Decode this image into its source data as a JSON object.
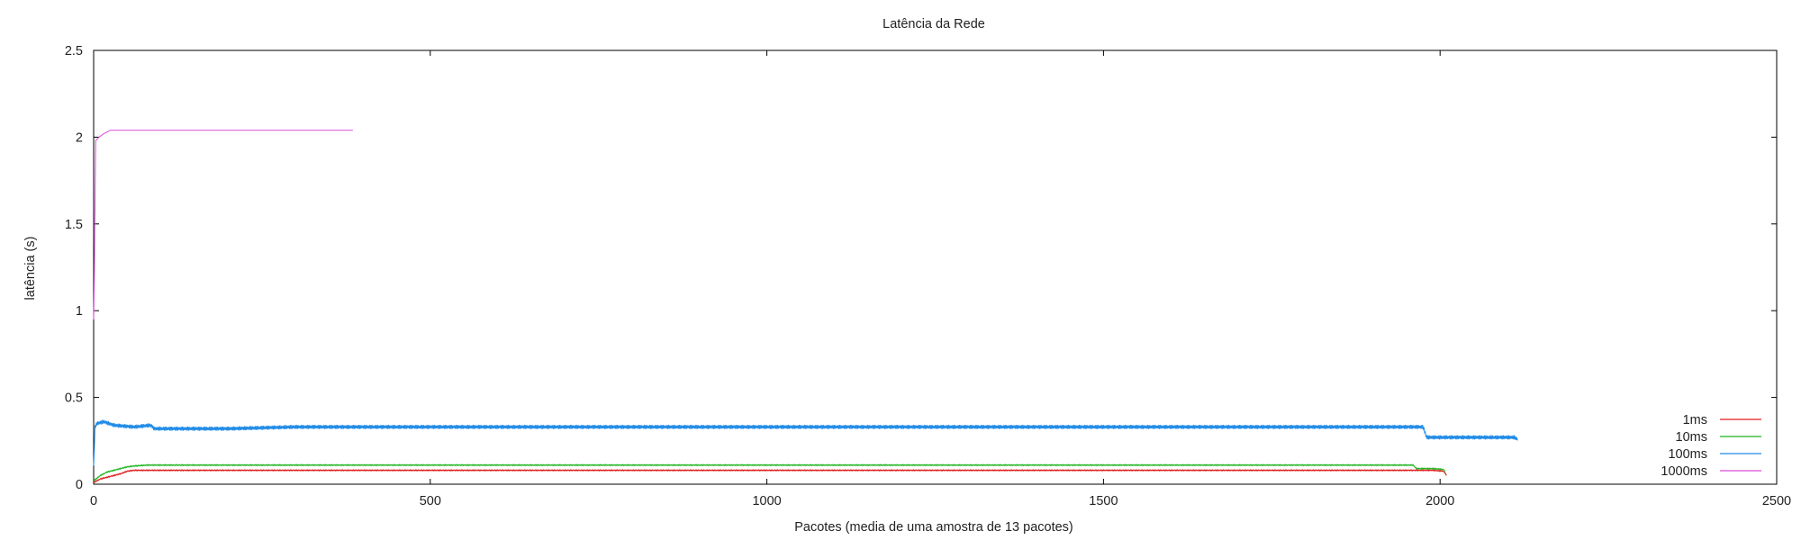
{
  "chart_data": {
    "type": "line",
    "title": "Latência da Rede",
    "xlabel": "Pacotes (media de uma amostra de 13 pacotes)",
    "ylabel": "latência (s)",
    "xlim": [
      0,
      2500
    ],
    "ylim": [
      0,
      2.5
    ],
    "xticks": [
      0,
      500,
      1000,
      1500,
      2000,
      2500
    ],
    "yticks": [
      0,
      0.5,
      1,
      1.5,
      2,
      2.5
    ],
    "xtick_labels": [
      "0",
      "500",
      "1000",
      "1500",
      "2000",
      "2500"
    ],
    "ytick_labels": [
      "0",
      "0.5",
      "1",
      "1.5",
      "2",
      "2.5"
    ],
    "grid": false,
    "legend_position": "bottom-right",
    "series": [
      {
        "name": "1ms",
        "color": "#e01b1b",
        "x": [
          0,
          10,
          20,
          30,
          40,
          50,
          60,
          100,
          500,
          1000,
          1500,
          1900,
          1960,
          1990,
          2005,
          2010
        ],
        "y": [
          0.01,
          0.03,
          0.04,
          0.05,
          0.06,
          0.075,
          0.08,
          0.08,
          0.08,
          0.08,
          0.08,
          0.08,
          0.08,
          0.08,
          0.075,
          0.05
        ],
        "noise": 0.003
      },
      {
        "name": "10ms",
        "color": "#1fb51f",
        "x": [
          0,
          10,
          20,
          30,
          40,
          50,
          60,
          80,
          100,
          500,
          1000,
          1500,
          1960,
          1965,
          1990,
          2005,
          2008
        ],
        "y": [
          0.02,
          0.05,
          0.07,
          0.08,
          0.09,
          0.1,
          0.105,
          0.11,
          0.11,
          0.11,
          0.11,
          0.11,
          0.11,
          0.09,
          0.09,
          0.085,
          0.07
        ],
        "noise": 0.003
      },
      {
        "name": "100ms",
        "color": "#1e8ae6",
        "x": [
          0,
          2,
          5,
          15,
          30,
          60,
          85,
          90,
          200,
          300,
          500,
          1000,
          1500,
          1975,
          1980,
          2000,
          2100,
          2110,
          2115
        ],
        "y": [
          0.1,
          0.33,
          0.35,
          0.36,
          0.34,
          0.33,
          0.34,
          0.32,
          0.32,
          0.33,
          0.33,
          0.33,
          0.33,
          0.33,
          0.27,
          0.27,
          0.27,
          0.27,
          0.26
        ],
        "noise": 0.012
      },
      {
        "name": "1000ms",
        "color": "#d94cd9",
        "x": [
          0,
          1,
          3,
          8,
          15,
          25,
          50,
          385
        ],
        "y": [
          0.95,
          1.2,
          1.98,
          2.0,
          2.02,
          2.04,
          2.04,
          2.04
        ],
        "noise": 0
      }
    ]
  }
}
